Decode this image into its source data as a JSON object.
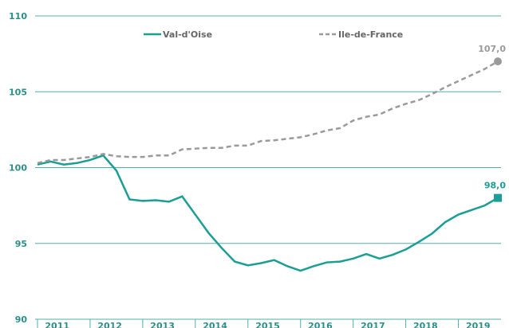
{
  "chart_data": {
    "type": "line",
    "categories": [
      null,
      "2011",
      null,
      null,
      null,
      "2012",
      null,
      null,
      null,
      "2013",
      null,
      null,
      null,
      "2014",
      null,
      null,
      null,
      "2015",
      null,
      null,
      null,
      "2016",
      null,
      null,
      null,
      "2017",
      null,
      null,
      null,
      "2018",
      null,
      null,
      null,
      "2019",
      null,
      null
    ],
    "series": [
      {
        "name": "Val-d'Oise",
        "color": "#1a9e96",
        "dashed": false,
        "marker": "square",
        "values": [
          100.2,
          100.4,
          100.2,
          100.3,
          100.5,
          100.8,
          99.8,
          97.9,
          97.8,
          97.85,
          97.75,
          98.1,
          96.9,
          95.7,
          94.7,
          93.8,
          93.55,
          93.7,
          93.9,
          93.5,
          93.2,
          93.5,
          93.75,
          93.8,
          94.0,
          94.3,
          94.0,
          94.25,
          94.6,
          95.1,
          95.65,
          96.4,
          96.9,
          97.2,
          97.5,
          98.0
        ],
        "value_labels": [
          null,
          null,
          null,
          null,
          null,
          null,
          null,
          null,
          null,
          null,
          null,
          null,
          null,
          null,
          null,
          null,
          null,
          null,
          null,
          null,
          null,
          null,
          null,
          null,
          null,
          null,
          null,
          null,
          null,
          null,
          null,
          null,
          null,
          null,
          null,
          "98,0"
        ]
      },
      {
        "name": "Ile-de-France",
        "color": "#9a9a9a",
        "dashed": true,
        "marker": "circle",
        "values": [
          100.3,
          100.5,
          100.5,
          100.6,
          100.7,
          100.9,
          100.75,
          100.7,
          100.7,
          100.8,
          100.8,
          101.2,
          101.25,
          101.3,
          101.3,
          101.45,
          101.45,
          101.75,
          101.8,
          101.9,
          102.0,
          102.2,
          102.45,
          102.6,
          103.1,
          103.35,
          103.5,
          103.9,
          104.2,
          104.45,
          104.85,
          105.3,
          105.7,
          106.1,
          106.5,
          107.0
        ],
        "value_labels": [
          null,
          null,
          null,
          null,
          null,
          null,
          null,
          null,
          null,
          null,
          null,
          null,
          null,
          null,
          null,
          null,
          null,
          null,
          null,
          null,
          null,
          null,
          null,
          null,
          null,
          null,
          null,
          null,
          null,
          null,
          null,
          null,
          null,
          null,
          null,
          "107,0"
        ]
      }
    ],
    "ylim": [
      90,
      110
    ],
    "yticks": [
      90,
      95,
      100,
      105,
      110
    ],
    "grid": true,
    "legend": "top"
  }
}
